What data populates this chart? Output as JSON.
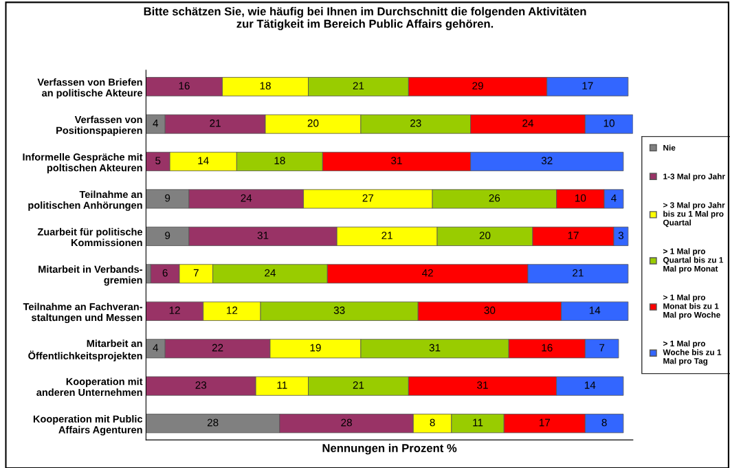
{
  "chart_data": {
    "type": "bar",
    "orientation": "horizontal",
    "stacked": true,
    "title": "Bitte schätzen Sie, wie häufig bei Ihnen im Durchschnitt die folgenden Aktivitäten\nzur Tätigkeit im Bereich Public Affairs gehören.",
    "xlabel": "Nennungen in Prozent %",
    "tick_labels": "y",
    "legend": "right",
    "grid": false,
    "categories": [
      "Verfassen von Briefen\nan politische Akteure",
      "Verfassen von\nPositionspapieren",
      "Informelle Gespräche mit\npoltischen Akteuren",
      "Teilnahme an\npolitischen Anhörungen",
      "Zuarbeit für politische\nKommissionen",
      "Mitarbeit in Verbands-\ngremien",
      "Teilnahme an Fachveran-\nstaltungen und Messen",
      "Mitarbeit an\nÖffentlichkeitsprojekten",
      "Kooperation mit\nanderen Unternehmen",
      "Kooperation mit Public\nAffairs Agenturen"
    ],
    "series": [
      {
        "name": "Nie",
        "color": "#808080",
        "values": [
          null,
          4,
          null,
          9,
          9,
          1,
          null,
          4,
          null,
          28
        ],
        "value_labels": [
          null,
          "4",
          null,
          "9",
          "9",
          null,
          null,
          "4",
          null,
          "28"
        ]
      },
      {
        "name": "1-3 Mal pro Jahr",
        "color": "#993366",
        "values": [
          16,
          21,
          5,
          24,
          31,
          6,
          12,
          22,
          23,
          28
        ],
        "value_labels": [
          "16",
          "21",
          "5",
          "24",
          "31",
          "6",
          "12",
          "22",
          "23",
          "28"
        ]
      },
      {
        "name": "> 3 Mal pro Jahr\nbis zu 1 Mal pro\nQuartal",
        "color": "#ffff00",
        "values": [
          18,
          20,
          14,
          27,
          21,
          7,
          12,
          19,
          11,
          8
        ],
        "value_labels": [
          "18",
          "20",
          "14",
          "27",
          "21",
          "7",
          "12",
          "19",
          "11",
          "8"
        ]
      },
      {
        "name": "> 1 Mal pro\nQuartal bis zu 1\nMal pro Monat",
        "color": "#99cc00",
        "values": [
          21,
          23,
          18,
          26,
          20,
          24,
          33,
          31,
          21,
          11
        ],
        "value_labels": [
          "21",
          "23",
          "18",
          "26",
          "20",
          "24",
          "33",
          "31",
          "21",
          "11"
        ]
      },
      {
        "name": "> 1 Mal pro\nMonat bis zu 1\nMal pro Woche",
        "color": "#ff0000",
        "values": [
          29,
          24,
          31,
          10,
          17,
          42,
          30,
          16,
          31,
          17
        ],
        "value_labels": [
          "29",
          "24",
          "31",
          "10",
          "17",
          "42",
          "30",
          "16",
          "31",
          "17"
        ]
      },
      {
        "name": "> 1 Mal pro\nWoche bis zu 1\nMal pro Tag",
        "color": "#3366ff",
        "values": [
          17,
          10,
          32,
          4,
          3,
          21,
          14,
          7,
          14,
          8
        ],
        "value_labels": [
          "17",
          "10",
          "32",
          "4",
          "3",
          "21",
          "14",
          "7",
          "14",
          "8"
        ]
      }
    ]
  }
}
